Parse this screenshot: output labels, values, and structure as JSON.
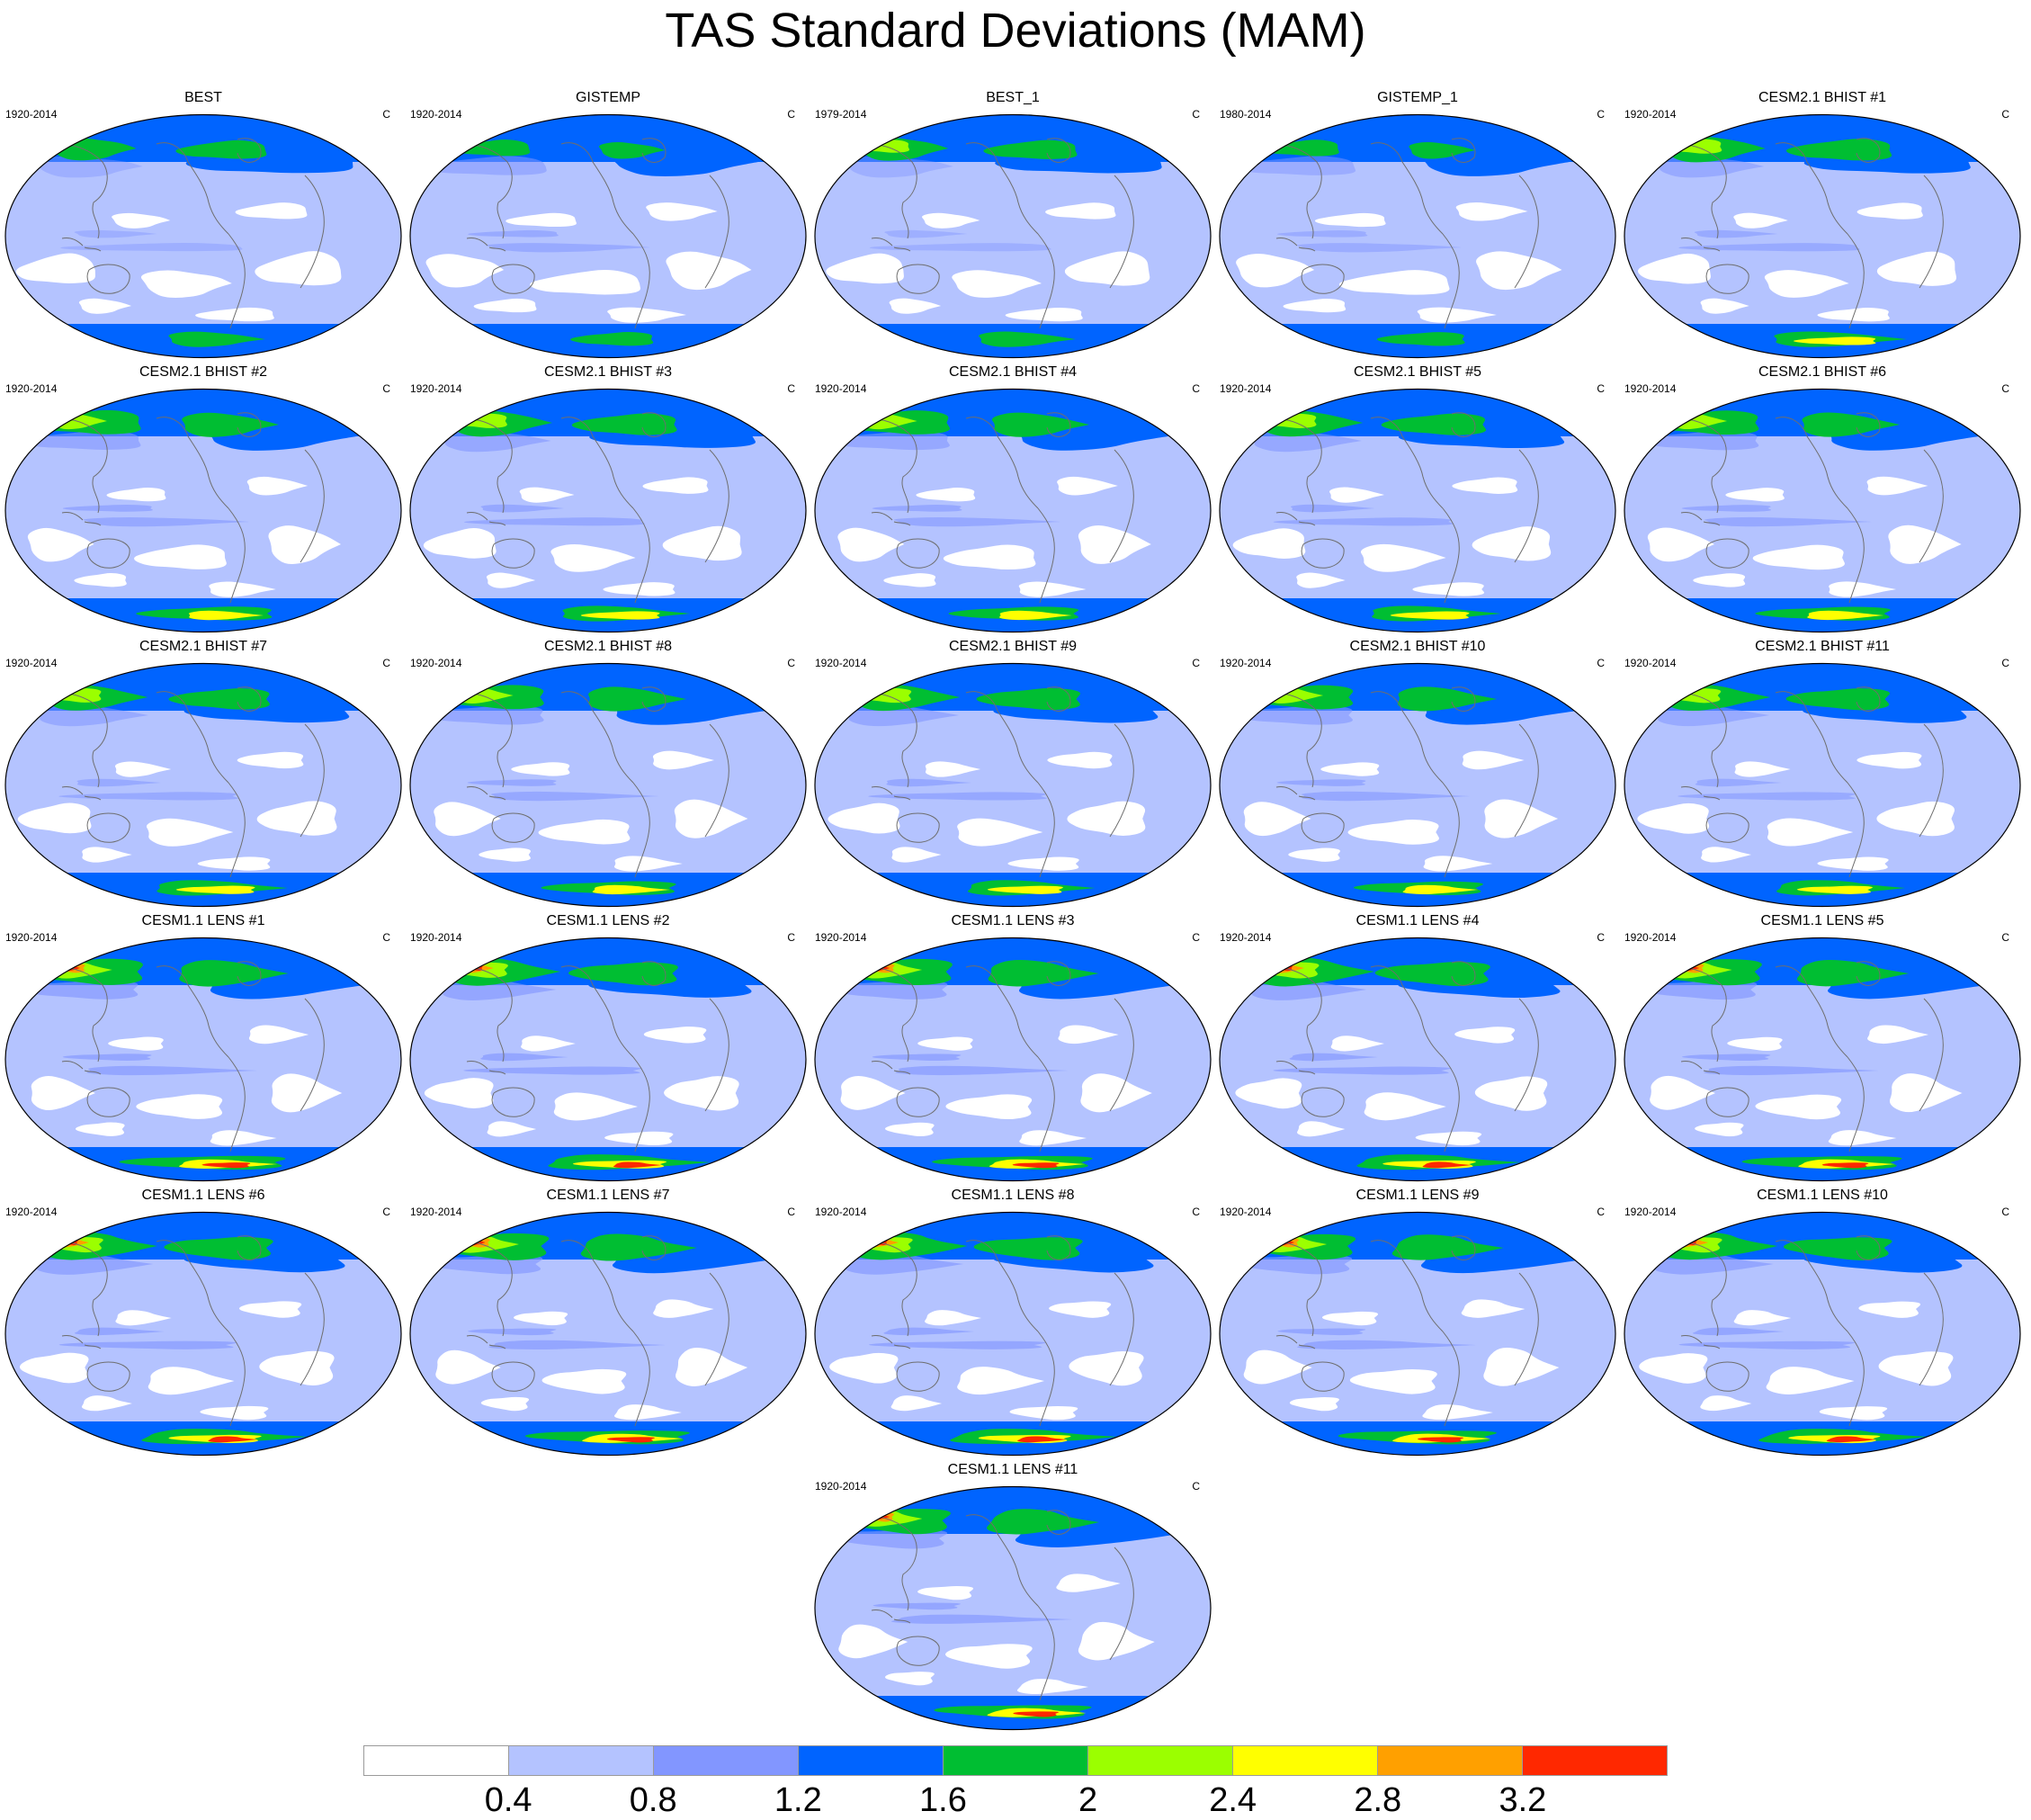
{
  "title": "TAS Standard Deviations (MAM)",
  "unit": "C",
  "panels": [
    {
      "title": "BEST",
      "period": "1920-2014",
      "intensity": 0.5,
      "blue": 0.45,
      "ant": 0.3
    },
    {
      "title": "GISTEMP",
      "period": "1920-2014",
      "intensity": 0.2,
      "blue": 0.55,
      "ant": 0.1
    },
    {
      "title": "BEST_1",
      "period": "1979-2014",
      "intensity": 0.55,
      "blue": 0.45,
      "ant": 0.3
    },
    {
      "title": "GISTEMP_1",
      "period": "1980-2014",
      "intensity": 0.2,
      "blue": 0.5,
      "ant": 0.15
    },
    {
      "title": "CESM2.1 BHIST #1",
      "period": "1920-2014",
      "intensity": 0.75,
      "blue": 0.55,
      "ant": 0.65
    },
    {
      "title": "CESM2.1 BHIST #2",
      "period": "1920-2014",
      "intensity": 0.75,
      "blue": 0.6,
      "ant": 0.6
    },
    {
      "title": "CESM2.1 BHIST #3",
      "period": "1920-2014",
      "intensity": 0.75,
      "blue": 0.6,
      "ant": 0.6
    },
    {
      "title": "CESM2.1 BHIST #4",
      "period": "1920-2014",
      "intensity": 0.75,
      "blue": 0.6,
      "ant": 0.55
    },
    {
      "title": "CESM2.1 BHIST #5",
      "period": "1920-2014",
      "intensity": 0.75,
      "blue": 0.6,
      "ant": 0.6
    },
    {
      "title": "CESM2.1 BHIST #6",
      "period": "1920-2014",
      "intensity": 0.75,
      "blue": 0.6,
      "ant": 0.6
    },
    {
      "title": "CESM2.1 BHIST #7",
      "period": "1920-2014",
      "intensity": 0.7,
      "blue": 0.55,
      "ant": 0.6
    },
    {
      "title": "CESM2.1 BHIST #8",
      "period": "1920-2014",
      "intensity": 0.75,
      "blue": 0.6,
      "ant": 0.6
    },
    {
      "title": "CESM2.1 BHIST #9",
      "period": "1920-2014",
      "intensity": 0.75,
      "blue": 0.6,
      "ant": 0.55
    },
    {
      "title": "CESM2.1 BHIST #10",
      "period": "1920-2014",
      "intensity": 0.75,
      "blue": 0.6,
      "ant": 0.55
    },
    {
      "title": "CESM2.1 BHIST #11",
      "period": "1920-2014",
      "intensity": 0.75,
      "blue": 0.55,
      "ant": 0.55
    },
    {
      "title": "CESM1.1 LENS #1",
      "period": "1920-2014",
      "intensity": 0.9,
      "blue": 0.65,
      "ant": 0.9
    },
    {
      "title": "CESM1.1 LENS #2",
      "period": "1920-2014",
      "intensity": 0.85,
      "blue": 0.65,
      "ant": 0.85
    },
    {
      "title": "CESM1.1 LENS #3",
      "period": "1920-2014",
      "intensity": 0.9,
      "blue": 0.65,
      "ant": 0.85
    },
    {
      "title": "CESM1.1 LENS #4",
      "period": "1920-2014",
      "intensity": 0.95,
      "blue": 0.65,
      "ant": 0.85
    },
    {
      "title": "CESM1.1 LENS #5",
      "period": "1920-2014",
      "intensity": 0.9,
      "blue": 0.65,
      "ant": 0.85
    },
    {
      "title": "CESM1.1 LENS #6",
      "period": "1920-2014",
      "intensity": 0.85,
      "blue": 0.65,
      "ant": 0.85
    },
    {
      "title": "CESM1.1 LENS #7",
      "period": "1920-2014",
      "intensity": 0.95,
      "blue": 0.65,
      "ant": 0.9
    },
    {
      "title": "CESM1.1 LENS #8",
      "period": "1920-2014",
      "intensity": 0.85,
      "blue": 0.65,
      "ant": 0.85
    },
    {
      "title": "CESM1.1 LENS #9",
      "period": "1920-2014",
      "intensity": 0.85,
      "blue": 0.65,
      "ant": 0.85
    },
    {
      "title": "CESM1.1 LENS #10",
      "period": "1920-2014",
      "intensity": 0.85,
      "blue": 0.65,
      "ant": 0.85
    },
    {
      "title": "CESM1.1 LENS #11",
      "period": "1920-2014",
      "intensity": 0.85,
      "blue": 0.65,
      "ant": 0.85
    }
  ],
  "colorbar": {
    "labels": [
      "0.4",
      "0.8",
      "1.2",
      "1.6",
      "2",
      "2.4",
      "2.8",
      "3.2"
    ],
    "colors": [
      "#ffffff",
      "#b4c3ff",
      "#8296ff",
      "#0064ff",
      "#00be32",
      "#9bff00",
      "#ffff00",
      "#ffa000",
      "#ff2800"
    ]
  },
  "map_colors": {
    "ocean_low": "#ffffff",
    "ocean_mid": "#b4c3ff",
    "band": "#8296ff",
    "arctic": "#0064ff",
    "land_high": "#00be32",
    "land_higher": "#9bff00",
    "hot": "#ffff00",
    "hotter": "#ffa000",
    "hottest": "#ff2800",
    "coast": "#6e6e6e",
    "outline": "#000000"
  }
}
